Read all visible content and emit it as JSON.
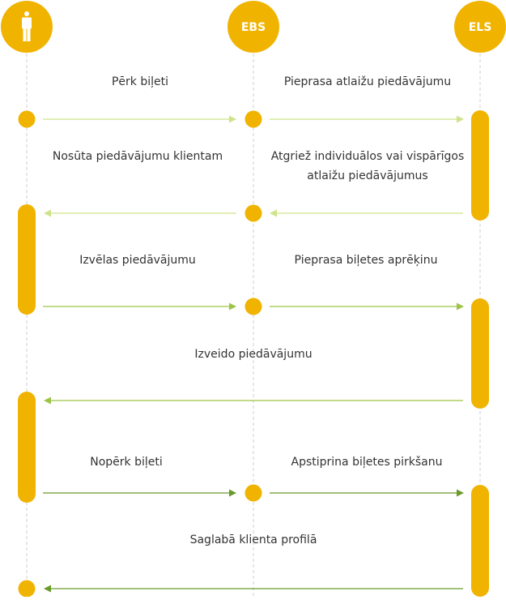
{
  "colors": {
    "accent": "#f0b400",
    "lifeline": "#cfcfcf",
    "arrow_light": "#cfe38a",
    "arrow_mid": "#9ec447",
    "arrow_dark": "#6a9a2b",
    "text": "#333333"
  },
  "actors": [
    {
      "id": "client",
      "icon": "person-icon",
      "label": ""
    },
    {
      "id": "ebs",
      "label": "EBS"
    },
    {
      "id": "els",
      "label": "ELS"
    }
  ],
  "messages": [
    {
      "text": "Pērk biļeti"
    },
    {
      "text": "Pieprasa atlaižu piedāvājumu"
    },
    {
      "text": "Nosūta piedāvājumu klientam"
    },
    {
      "text_line1": "Atgriež individuālos vai vispārīgos",
      "text_line2": "atlaižu piedāvājumus"
    },
    {
      "text": "Izvēlas piedāvājumu"
    },
    {
      "text": "Pieprasa biļetes aprēķinu"
    },
    {
      "text": "Izveido piedāvājumu"
    },
    {
      "text": "Nopērk biļeti"
    },
    {
      "text": "Apstiprina biļetes pirkšanu"
    },
    {
      "text": "Saglabā klienta profilā"
    }
  ]
}
